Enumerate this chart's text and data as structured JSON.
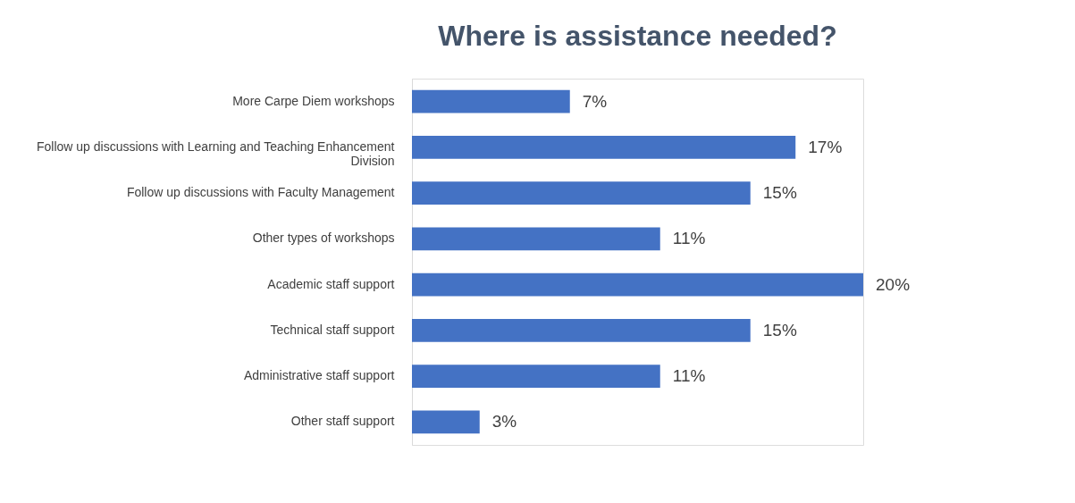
{
  "chart_data": {
    "type": "bar",
    "orientation": "horizontal",
    "title": "Where is assistance needed?",
    "categories": [
      "More Carpe Diem workshops",
      "Follow up discussions with Learning and Teaching Enhancement Division",
      "Follow up discussions with Faculty Management",
      "Other types of workshops",
      "Academic staff support",
      "Technical staff support",
      "Administrative staff support",
      "Other staff support"
    ],
    "values": [
      7,
      17,
      15,
      11,
      20,
      15,
      11,
      3
    ],
    "value_labels": [
      "7%",
      "17%",
      "15%",
      "11%",
      "20%",
      "15%",
      "11%",
      "3%"
    ],
    "color": "#4472c4"
  }
}
